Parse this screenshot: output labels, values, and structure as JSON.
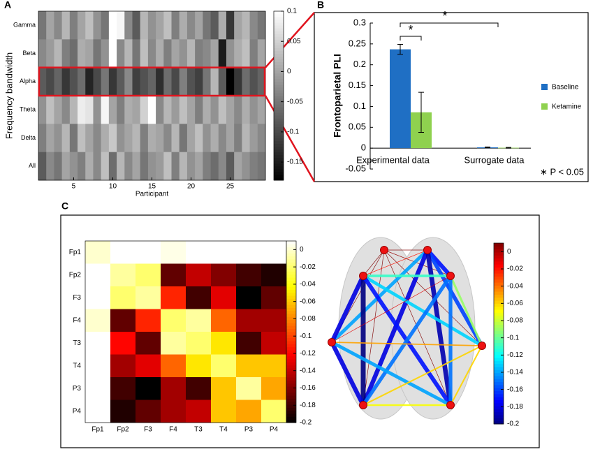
{
  "chart_data": [
    {
      "type": "heatmap",
      "colormap": "gray",
      "panel": "A",
      "ylabel": "Frequency bandwidth",
      "xlabel": "Participant",
      "rows": [
        "Gamma",
        "Beta",
        "Alpha",
        "Theta",
        "Delta",
        "All"
      ],
      "x": [
        1,
        2,
        3,
        4,
        5,
        6,
        7,
        8,
        9,
        10,
        11,
        12,
        13,
        14,
        15,
        16,
        17,
        18,
        19,
        20,
        21,
        22,
        23,
        24,
        25,
        26,
        27,
        28,
        29
      ],
      "xlim": [
        0.5,
        29.5
      ],
      "xticks": [
        5,
        10,
        15,
        20,
        25
      ],
      "values": [
        [
          -0.05,
          0.0,
          -0.03,
          0.02,
          -0.04,
          0.0,
          0.03,
          -0.02,
          -0.05,
          0.1,
          0.09,
          -0.03,
          -0.08,
          0.02,
          -0.02,
          0.0,
          0.03,
          -0.04,
          0.01,
          -0.03,
          0.0,
          -0.05,
          -0.08,
          0.01,
          -0.12,
          0.0,
          0.02,
          -0.03,
          -0.05
        ],
        [
          -0.03,
          -0.01,
          0.02,
          -0.04,
          -0.06,
          0.01,
          0.0,
          -0.05,
          -0.02,
          0.1,
          -0.03,
          0.02,
          -0.05,
          0.03,
          -0.03,
          0.01,
          -0.04,
          0.0,
          -0.02,
          0.02,
          -0.04,
          -0.03,
          0.0,
          -0.15,
          -0.02,
          0.01,
          0.03,
          -0.04,
          0.0
        ],
        [
          -0.08,
          -0.1,
          -0.07,
          -0.12,
          -0.09,
          -0.06,
          -0.14,
          -0.1,
          -0.05,
          -0.12,
          -0.08,
          -0.03,
          -0.11,
          -0.09,
          -0.07,
          -0.13,
          -0.06,
          -0.1,
          -0.04,
          -0.09,
          -0.11,
          -0.05,
          0.02,
          -0.08,
          -0.18,
          -0.12,
          -0.06,
          -0.09,
          -0.07
        ],
        [
          -0.02,
          0.03,
          0.0,
          -0.03,
          0.02,
          0.08,
          0.07,
          -0.02,
          0.09,
          0.0,
          -0.04,
          0.01,
          0.0,
          0.05,
          0.1,
          -0.03,
          0.02,
          -0.01,
          0.03,
          0.0,
          -0.04,
          0.01,
          -0.02,
          0.03,
          0.0,
          -0.03,
          0.01,
          -0.02,
          0.0
        ],
        [
          -0.04,
          0.0,
          -0.02,
          0.02,
          -0.05,
          0.03,
          0.0,
          -0.03,
          0.01,
          0.04,
          -0.02,
          0.0,
          0.02,
          -0.04,
          0.01,
          0.0,
          -0.03,
          0.02,
          -0.05,
          0.0,
          0.03,
          -0.02,
          0.01,
          -0.03,
          0.0,
          -0.04,
          0.02,
          -0.01,
          -0.03
        ],
        [
          -0.08,
          -0.03,
          -0.05,
          0.0,
          -0.02,
          -0.04,
          0.01,
          -0.03,
          0.03,
          -0.06,
          0.02,
          -0.03,
          0.0,
          -0.05,
          -0.02,
          -0.01,
          0.03,
          -0.04,
          0.02,
          -0.02,
          0.0,
          -0.04,
          -0.06,
          -0.03,
          -0.08,
          0.0,
          -0.02,
          -0.04,
          -0.05
        ]
      ],
      "clim": [
        -0.18,
        0.1
      ],
      "cticks": [
        0.1,
        0.05,
        0,
        -0.05,
        -0.1,
        -0.15
      ]
    },
    {
      "type": "bar",
      "panel": "B",
      "ylabel": "Frontoparietal PLI",
      "categories": [
        "Experimental data",
        "Surrogate data"
      ],
      "series": [
        {
          "name": "Baseline",
          "color": "#1f6fc4",
          "values": [
            0.237,
            0.002
          ],
          "errors": [
            0.012,
            0.001
          ]
        },
        {
          "name": "Ketamine",
          "color": "#8fd14f",
          "values": [
            0.086,
            0.001
          ],
          "errors": [
            0.048,
            0.001
          ]
        }
      ],
      "ylim": [
        -0.05,
        0.3
      ],
      "yticks": [
        -0.05,
        0,
        0.05,
        0.1,
        0.15,
        0.2,
        0.25,
        0.3
      ],
      "annotations": [
        "*",
        "*"
      ],
      "note": "∗ P < 0.05"
    },
    {
      "type": "heatmap",
      "colormap": "hot",
      "panel": "C",
      "labels": [
        "Fp1",
        "Fp2",
        "F3",
        "F4",
        "T3",
        "T4",
        "P3",
        "P4"
      ],
      "values": [
        [
          0.0,
          0.01,
          0.01,
          0.005,
          0.01,
          0.01,
          0.01,
          0.01
        ],
        [
          0.01,
          -0.01,
          -0.02,
          -0.17,
          -0.14,
          -0.16,
          -0.18,
          -0.19
        ],
        [
          0.01,
          -0.02,
          -0.01,
          -0.11,
          -0.18,
          -0.13,
          -0.2,
          -0.17
        ],
        [
          0.0,
          -0.17,
          -0.11,
          -0.02,
          -0.01,
          -0.09,
          -0.15,
          -0.15
        ],
        [
          0.01,
          -0.12,
          -0.17,
          -0.01,
          -0.02,
          -0.05,
          -0.18,
          -0.14
        ],
        [
          0.01,
          -0.15,
          -0.13,
          -0.09,
          -0.05,
          -0.02,
          -0.06,
          -0.06
        ],
        [
          0.01,
          -0.18,
          -0.2,
          -0.15,
          -0.18,
          -0.06,
          -0.01,
          -0.07
        ],
        [
          0.01,
          -0.19,
          -0.17,
          -0.15,
          -0.14,
          -0.06,
          -0.07,
          -0.02
        ]
      ],
      "clim": [
        -0.2,
        0.01
      ],
      "cticks": [
        0,
        -0.02,
        -0.04,
        -0.06,
        -0.08,
        -0.1,
        -0.12,
        -0.14,
        -0.16,
        -0.18,
        -0.2
      ]
    },
    {
      "type": "network",
      "colormap": "jet",
      "clim": [
        -0.2,
        0.01
      ],
      "cticks": [
        0,
        -0.02,
        -0.04,
        -0.06,
        -0.08,
        -0.1,
        -0.12,
        -0.14,
        -0.16,
        -0.18,
        -0.2
      ]
    }
  ]
}
